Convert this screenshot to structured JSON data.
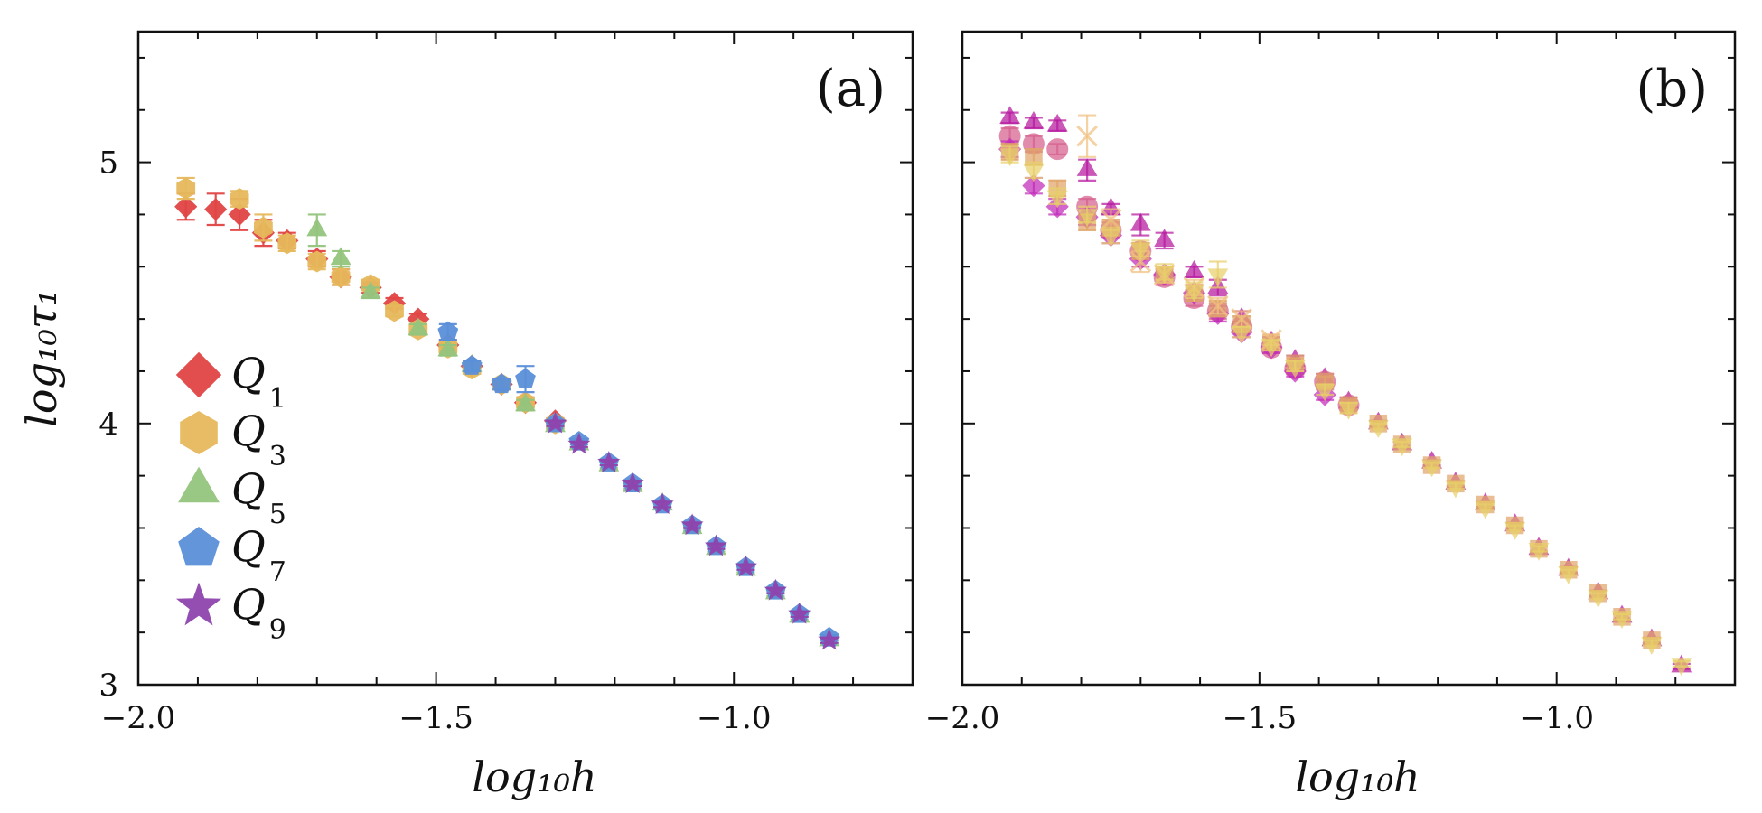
{
  "chart_data": [
    {
      "type": "scatter",
      "panel_label": "(a)",
      "xlabel": "log₁₀h",
      "ylabel": "log₁₀τ₁",
      "xlim": [
        -2.0,
        -0.7
      ],
      "ylim": [
        3.0,
        5.5
      ],
      "xticks": [
        -2.0,
        -1.5,
        -1.0
      ],
      "xtick_labels": [
        "−2.0",
        "−1.5",
        "−1.0"
      ],
      "yticks": [
        3,
        4,
        5
      ],
      "ytick_labels": [
        "3",
        "4",
        "5"
      ],
      "legend_position": "bottom-left",
      "series": [
        {
          "name": "Q1",
          "label_main": "Q",
          "label_sub": "1",
          "marker": "diamond",
          "color": "#e04545",
          "x": [
            -1.92,
            -1.87,
            -1.83,
            -1.79,
            -1.75,
            -1.7,
            -1.66,
            -1.61,
            -1.57,
            -1.53,
            -1.48,
            -1.44,
            -1.39,
            -1.35,
            -1.3
          ],
          "y": [
            4.83,
            4.82,
            4.8,
            4.73,
            4.7,
            4.63,
            4.56,
            4.52,
            4.46,
            4.4,
            4.3,
            4.22,
            4.15,
            4.08,
            4.01
          ],
          "err": [
            0.05,
            0.06,
            0.06,
            0.05,
            0.03,
            0.03,
            0.03,
            0.02,
            0.02,
            0.02,
            0.02,
            0.02,
            0.02,
            0.02,
            0.01
          ]
        },
        {
          "name": "Q3",
          "label_main": "Q",
          "label_sub": "3",
          "marker": "hexagon",
          "color": "#e6b85c",
          "x": [
            -1.92,
            -1.83,
            -1.79,
            -1.75,
            -1.7,
            -1.66,
            -1.61,
            -1.57,
            -1.53,
            -1.48,
            -1.44,
            -1.39,
            -1.35,
            -1.3
          ],
          "y": [
            4.9,
            4.86,
            4.75,
            4.69,
            4.62,
            4.56,
            4.53,
            4.43,
            4.36,
            4.29,
            4.21,
            4.15,
            4.08,
            4.0
          ],
          "err": [
            0.04,
            0.03,
            0.05,
            0.03,
            0.03,
            0.03,
            0.02,
            0.02,
            0.02,
            0.02,
            0.02,
            0.02,
            0.02,
            0.01
          ]
        },
        {
          "name": "Q5",
          "label_main": "Q",
          "label_sub": "5",
          "marker": "triangle",
          "color": "#93c47d",
          "x": [
            -1.7,
            -1.66,
            -1.61,
            -1.53,
            -1.48,
            -1.44,
            -1.35,
            -1.3,
            -1.26,
            -1.21,
            -1.17,
            -1.12,
            -1.07,
            -1.03,
            -0.98,
            -0.93,
            -0.89,
            -0.84
          ],
          "y": [
            4.74,
            4.63,
            4.5,
            4.36,
            4.28,
            4.22,
            4.07,
            3.99,
            3.92,
            3.84,
            3.76,
            3.69,
            3.6,
            3.52,
            3.44,
            3.35,
            3.26,
            3.17
          ],
          "err": [
            0.06,
            0.03,
            0.02,
            0.02,
            0.02,
            0.02,
            0.02,
            0.01,
            0.01,
            0.01,
            0.01,
            0.01,
            0.01,
            0.01,
            0.01,
            0.01,
            0.01,
            0.01
          ]
        },
        {
          "name": "Q7",
          "label_main": "Q",
          "label_sub": "7",
          "marker": "pentagon",
          "color": "#5b8fd9",
          "x": [
            -1.48,
            -1.44,
            -1.39,
            -1.35,
            -1.3,
            -1.26,
            -1.21,
            -1.17,
            -1.12,
            -1.07,
            -1.03,
            -0.98,
            -0.93,
            -0.89,
            -0.84
          ],
          "y": [
            4.35,
            4.22,
            4.15,
            4.17,
            4.0,
            3.93,
            3.85,
            3.77,
            3.69,
            3.61,
            3.53,
            3.45,
            3.36,
            3.27,
            3.18
          ],
          "err": [
            0.03,
            0.02,
            0.02,
            0.05,
            0.01,
            0.01,
            0.01,
            0.01,
            0.01,
            0.01,
            0.01,
            0.01,
            0.01,
            0.01,
            0.01
          ]
        },
        {
          "name": "Q9",
          "label_main": "Q",
          "label_sub": "9",
          "marker": "star",
          "color": "#8e44ad",
          "x": [
            -1.3,
            -1.26,
            -1.21,
            -1.17,
            -1.12,
            -1.07,
            -1.03,
            -0.98,
            -0.93,
            -0.89,
            -0.84
          ],
          "y": [
            4.0,
            3.92,
            3.85,
            3.77,
            3.69,
            3.61,
            3.53,
            3.45,
            3.36,
            3.27,
            3.17
          ],
          "err": [
            0.01,
            0.01,
            0.01,
            0.01,
            0.01,
            0.01,
            0.01,
            0.01,
            0.01,
            0.01,
            0.01
          ]
        }
      ]
    },
    {
      "type": "scatter",
      "panel_label": "(b)",
      "xlabel": "log₁₀h",
      "ylabel": "",
      "xlim": [
        -2.0,
        -0.7
      ],
      "ylim": [
        3.0,
        5.5
      ],
      "xticks": [
        -2.0,
        -1.5,
        -1.0
      ],
      "xtick_labels": [
        "−2.0",
        "−1.5",
        "−1.0"
      ],
      "yticks": [
        3,
        4,
        5
      ],
      "ytick_labels": [],
      "series": [
        {
          "name": "b-magenta-triangles",
          "marker": "triangle",
          "color": "#b5179e",
          "x": [
            -1.92,
            -1.88,
            -1.84,
            -1.79,
            -1.75,
            -1.7,
            -1.66,
            -1.61,
            -1.57,
            -1.53,
            -1.48,
            -1.44,
            -1.39,
            -1.35,
            -1.3,
            -1.26,
            -1.21,
            -1.17,
            -1.12,
            -1.07,
            -1.03,
            -0.98,
            -0.93,
            -0.89,
            -0.84,
            -0.79
          ],
          "y": [
            5.17,
            5.15,
            5.14,
            4.97,
            4.82,
            4.76,
            4.7,
            4.58,
            4.52,
            4.4,
            4.31,
            4.24,
            4.17,
            4.08,
            4.0,
            3.92,
            3.85,
            3.77,
            3.69,
            3.61,
            3.52,
            3.44,
            3.35,
            3.26,
            3.17,
            3.07
          ],
          "err": [
            0.02,
            0.02,
            0.02,
            0.04,
            0.02,
            0.04,
            0.03,
            0.02,
            0.03,
            0.03,
            0.02,
            0.02,
            0.02,
            0.02,
            0.01,
            0.01,
            0.01,
            0.01,
            0.01,
            0.01,
            0.01,
            0.01,
            0.01,
            0.01,
            0.01,
            0.01
          ]
        },
        {
          "name": "b-rose-circles",
          "marker": "circle",
          "color": "#d65f8e",
          "x": [
            -1.92,
            -1.88,
            -1.84,
            -1.79,
            -1.75,
            -1.7,
            -1.66,
            -1.61,
            -1.57,
            -1.53,
            -1.48,
            -1.44,
            -1.39,
            -1.35
          ],
          "y": [
            5.1,
            5.07,
            5.05,
            4.83,
            4.74,
            4.66,
            4.56,
            4.48,
            4.43,
            4.37,
            4.29,
            4.21,
            4.16,
            4.07
          ],
          "err": [
            0.03,
            0.03,
            0.02,
            0.03,
            0.03,
            0.03,
            0.03,
            0.03,
            0.03,
            0.02,
            0.02,
            0.02,
            0.02,
            0.02
          ]
        },
        {
          "name": "b-violet-diamonds",
          "marker": "diamond",
          "color": "#c02bb8",
          "x": [
            -1.92,
            -1.88,
            -1.84,
            -1.79,
            -1.75,
            -1.7,
            -1.66,
            -1.61,
            -1.57,
            -1.53,
            -1.48,
            -1.44,
            -1.39
          ],
          "y": [
            5.05,
            4.91,
            4.83,
            4.79,
            4.72,
            4.63,
            4.57,
            4.5,
            4.42,
            4.35,
            4.29,
            4.2,
            4.11
          ],
          "err": [
            0.03,
            0.03,
            0.03,
            0.03,
            0.03,
            0.03,
            0.03,
            0.03,
            0.03,
            0.02,
            0.02,
            0.02,
            0.02
          ]
        },
        {
          "name": "b-tan-squares",
          "marker": "square",
          "color": "#e0a56a",
          "x": [
            -1.92,
            -1.88,
            -1.84,
            -1.79,
            -1.75,
            -1.7,
            -1.66,
            -1.61,
            -1.57,
            -1.53,
            -1.48,
            -1.44,
            -1.39,
            -1.35,
            -1.3,
            -1.26,
            -1.21,
            -1.17,
            -1.12,
            -1.07,
            -1.03,
            -0.98,
            -0.93,
            -0.89,
            -0.84
          ],
          "y": [
            5.04,
            5.02,
            4.9,
            4.77,
            4.75,
            4.66,
            4.57,
            4.5,
            4.44,
            4.38,
            4.31,
            4.23,
            4.16,
            4.07,
            4.0,
            3.92,
            3.84,
            3.77,
            3.69,
            3.61,
            3.52,
            3.44,
            3.35,
            3.26,
            3.17
          ],
          "err": [
            0.03,
            0.03,
            0.03,
            0.03,
            0.03,
            0.03,
            0.03,
            0.03,
            0.03,
            0.03,
            0.02,
            0.02,
            0.02,
            0.02,
            0.01,
            0.01,
            0.01,
            0.01,
            0.01,
            0.01,
            0.01,
            0.01,
            0.01,
            0.01,
            0.01
          ]
        },
        {
          "name": "b-light-crosses",
          "marker": "cross",
          "color": "#f0c080",
          "x": [
            -1.79,
            -1.75,
            -1.7,
            -1.66,
            -1.61,
            -1.57,
            -1.53,
            -1.48
          ],
          "y": [
            5.1,
            4.78,
            4.62,
            4.57,
            4.52,
            4.45,
            4.4,
            4.32
          ],
          "err": [
            0.08,
            0.04,
            0.04,
            0.03,
            0.03,
            0.03,
            0.03,
            0.02
          ]
        },
        {
          "name": "b-yellow-down-triangles",
          "marker": "triangle-down",
          "color": "#e8d06a",
          "x": [
            -1.92,
            -1.88,
            -1.84,
            -1.79,
            -1.75,
            -1.7,
            -1.66,
            -1.61,
            -1.57,
            -1.53,
            -1.48,
            -1.44,
            -1.39,
            -1.35,
            -1.3,
            -1.26,
            -1.21,
            -1.17,
            -1.12,
            -1.07,
            -1.03,
            -0.98,
            -0.93,
            -0.89,
            -0.84,
            -0.79
          ],
          "y": [
            5.03,
            4.97,
            4.87,
            4.8,
            4.72,
            4.67,
            4.58,
            4.51,
            4.57,
            4.35,
            4.3,
            4.22,
            4.13,
            4.06,
            3.99,
            3.92,
            3.84,
            3.76,
            3.68,
            3.6,
            3.52,
            3.43,
            3.34,
            3.26,
            3.16,
            3.08
          ],
          "err": [
            0.03,
            0.03,
            0.03,
            0.03,
            0.03,
            0.03,
            0.03,
            0.03,
            0.05,
            0.02,
            0.02,
            0.02,
            0.02,
            0.02,
            0.01,
            0.01,
            0.01,
            0.01,
            0.01,
            0.01,
            0.01,
            0.01,
            0.01,
            0.01,
            0.01,
            0.01
          ]
        }
      ]
    }
  ]
}
